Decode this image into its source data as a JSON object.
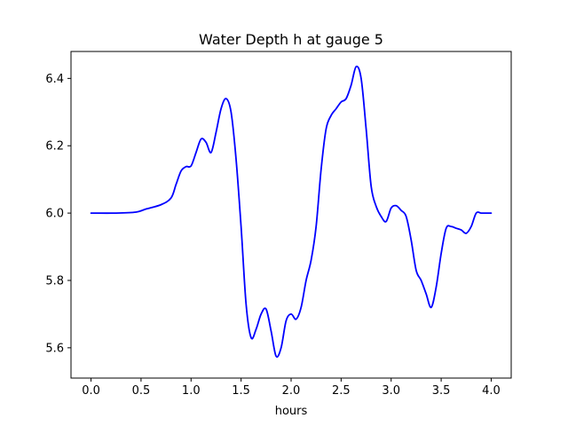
{
  "chart_data": {
    "type": "line",
    "title": "Water Depth h at gauge 5",
    "xlabel": "hours",
    "ylabel": "",
    "xlim": [
      -0.2,
      4.2
    ],
    "ylim": [
      5.51,
      6.48
    ],
    "xticks": [
      0.0,
      0.5,
      1.0,
      1.5,
      2.0,
      2.5,
      3.0,
      3.5,
      4.0
    ],
    "xtick_labels": [
      "0.0",
      "0.5",
      "1.0",
      "1.5",
      "2.0",
      "2.5",
      "3.0",
      "3.5",
      "4.0"
    ],
    "yticks": [
      5.6,
      5.8,
      6.0,
      6.2,
      6.4
    ],
    "ytick_labels": [
      "5.6",
      "5.8",
      "6.0",
      "6.2",
      "6.4"
    ],
    "grid": false,
    "series": [
      {
        "color": "#0000ff",
        "x": [
          0.0,
          0.25,
          0.45,
          0.55,
          0.7,
          0.8,
          0.85,
          0.9,
          0.95,
          1.0,
          1.05,
          1.1,
          1.15,
          1.2,
          1.25,
          1.3,
          1.35,
          1.4,
          1.45,
          1.5,
          1.55,
          1.6,
          1.65,
          1.7,
          1.75,
          1.8,
          1.85,
          1.9,
          1.95,
          2.0,
          2.05,
          2.1,
          2.15,
          2.2,
          2.25,
          2.3,
          2.35,
          2.4,
          2.45,
          2.5,
          2.55,
          2.6,
          2.65,
          2.7,
          2.75,
          2.8,
          2.85,
          2.9,
          2.95,
          3.0,
          3.05,
          3.1,
          3.15,
          3.2,
          3.25,
          3.3,
          3.35,
          3.4,
          3.45,
          3.5,
          3.55,
          3.6,
          3.65,
          3.7,
          3.75,
          3.8,
          3.85,
          3.9,
          3.95,
          4.0
        ],
        "y": [
          6.0,
          6.0,
          6.003,
          6.012,
          6.025,
          6.045,
          6.085,
          6.125,
          6.138,
          6.14,
          6.18,
          6.22,
          6.21,
          6.18,
          6.24,
          6.31,
          6.34,
          6.3,
          6.16,
          5.96,
          5.73,
          5.63,
          5.655,
          5.7,
          5.715,
          5.65,
          5.575,
          5.6,
          5.68,
          5.7,
          5.685,
          5.72,
          5.8,
          5.86,
          5.96,
          6.13,
          6.25,
          6.29,
          6.31,
          6.33,
          6.34,
          6.38,
          6.435,
          6.4,
          6.25,
          6.08,
          6.02,
          5.99,
          5.975,
          6.015,
          6.022,
          6.008,
          5.99,
          5.92,
          5.83,
          5.8,
          5.76,
          5.72,
          5.78,
          5.88,
          5.955,
          5.96,
          5.955,
          5.95,
          5.94,
          5.96,
          6.0,
          6.0,
          6.0,
          6.0
        ]
      }
    ]
  }
}
